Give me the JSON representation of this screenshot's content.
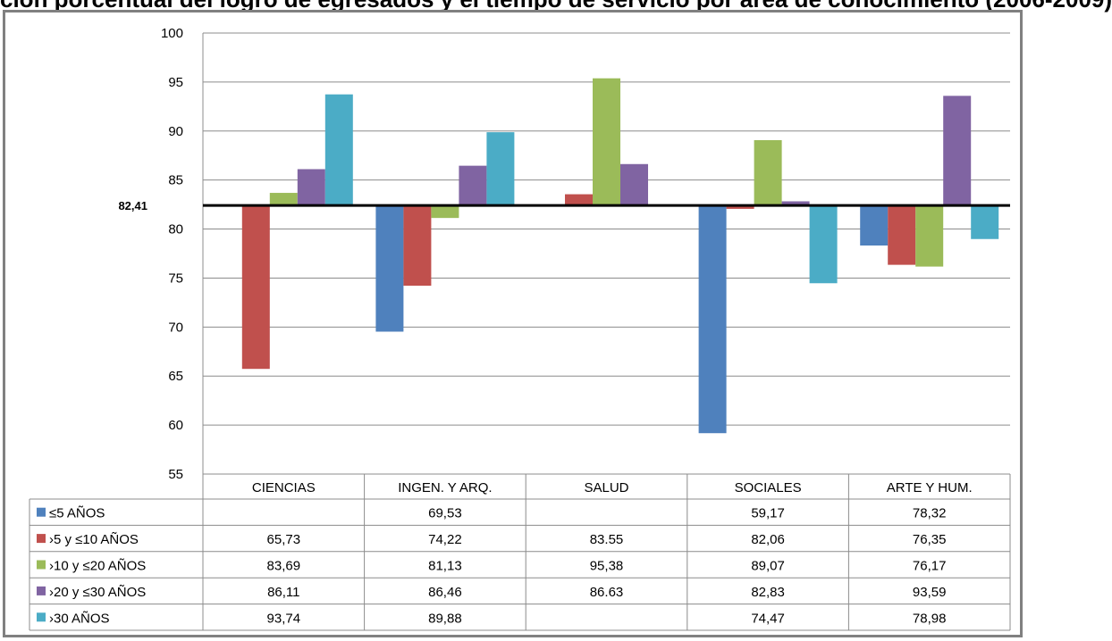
{
  "title": "ción porcentual del logro de egresados y el tiempo de servicio por área de conocimiento (2006-2009)",
  "chart_data": {
    "type": "bar",
    "categories": [
      "CIENCIAS",
      "INGEN. Y ARQ.",
      "SALUD",
      "SOCIALES",
      "ARTE Y HUM."
    ],
    "baseline": 82.41,
    "baseline_label": "82,41",
    "ylim": [
      55,
      100
    ],
    "yticks": [
      55,
      60,
      65,
      70,
      75,
      80,
      85,
      90,
      95,
      100
    ],
    "grid": true,
    "series": [
      {
        "name": "≤5 AÑOS",
        "color": "#4F81BD",
        "values": [
          null,
          69.53,
          null,
          59.17,
          78.32
        ],
        "labels": [
          "",
          "69,53",
          "",
          "59,17",
          "78,32"
        ]
      },
      {
        "name": "›5 y ≤10 AÑOS",
        "color": "#C0504D",
        "values": [
          65.73,
          74.22,
          83.55,
          82.06,
          76.35
        ],
        "labels": [
          "65,73",
          "74,22",
          "83.55",
          "82,06",
          "76,35"
        ]
      },
      {
        "name": "›10 y ≤20 AÑOS",
        "color": "#9BBB59",
        "values": [
          83.69,
          81.13,
          95.38,
          89.07,
          76.17
        ],
        "labels": [
          "83,69",
          "81,13",
          "95,38",
          "89,07",
          "76,17"
        ]
      },
      {
        "name": "›20 y ≤30 AÑOS",
        "color": "#8064A2",
        "values": [
          86.11,
          86.46,
          86.63,
          82.83,
          93.59
        ],
        "labels": [
          "86,11",
          "86,46",
          "86.63",
          "82,83",
          "93,59"
        ]
      },
      {
        "name": "›30 AÑOS",
        "color": "#4BACC6",
        "values": [
          93.74,
          89.88,
          null,
          74.47,
          78.98
        ],
        "labels": [
          "93,74",
          "89,88",
          "",
          "74,47",
          "78,98"
        ]
      }
    ]
  }
}
